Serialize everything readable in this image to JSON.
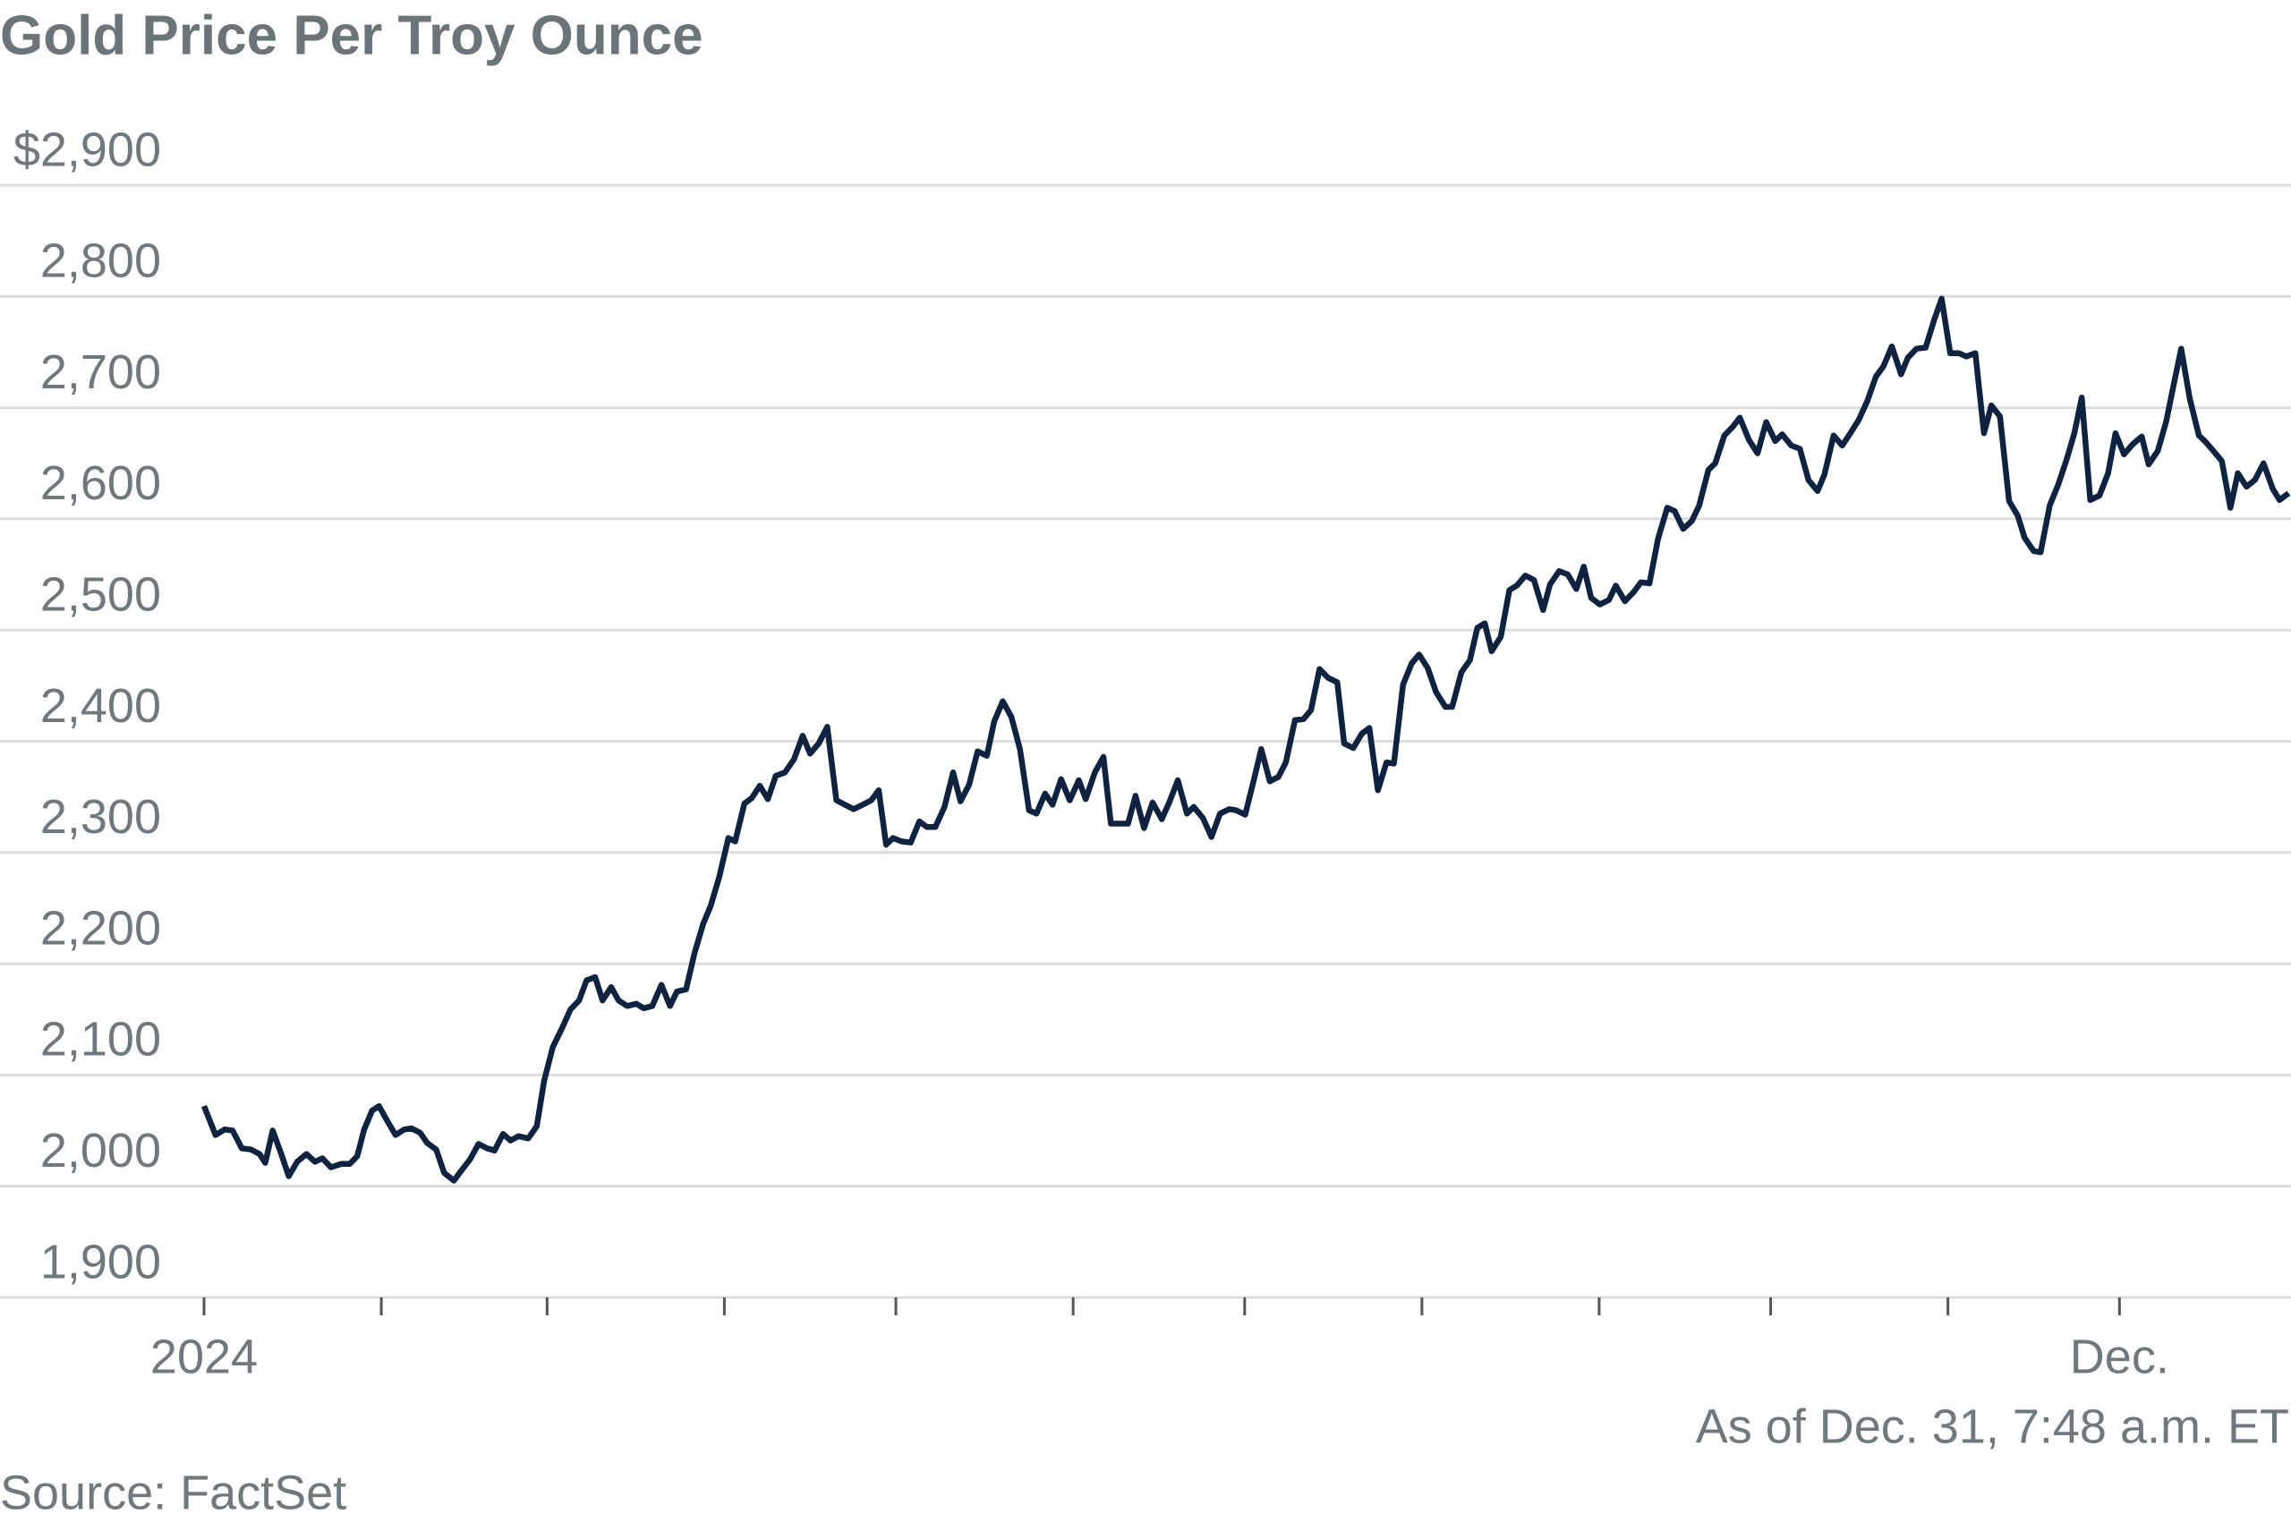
{
  "chart_data": {
    "type": "line",
    "title": "Gold Price Per Troy Ounce",
    "annotation": "As of Dec. 31, 7:48 a.m. ET",
    "source": "Source: FactSet",
    "color": "#0f2340",
    "grid": true,
    "xlim": [
      0,
      365
    ],
    "ylim": [
      1900,
      2900
    ],
    "yticks": [
      {
        "value": 1900,
        "label": "1,900"
      },
      {
        "value": 2000,
        "label": "2,000"
      },
      {
        "value": 2100,
        "label": "2,100"
      },
      {
        "value": 2200,
        "label": "2,200"
      },
      {
        "value": 2300,
        "label": "2,300"
      },
      {
        "value": 2400,
        "label": "2,400"
      },
      {
        "value": 2500,
        "label": "2,500"
      },
      {
        "value": 2600,
        "label": "2,600"
      },
      {
        "value": 2700,
        "label": "2,700"
      },
      {
        "value": 2800,
        "label": "2,800"
      },
      {
        "value": 2900,
        "label": "$2,900"
      }
    ],
    "xticks": [
      {
        "value": 0,
        "label": "2024"
      },
      {
        "value": 31,
        "label": null
      },
      {
        "value": 60,
        "label": null
      },
      {
        "value": 91,
        "label": null
      },
      {
        "value": 121,
        "label": null
      },
      {
        "value": 152,
        "label": null
      },
      {
        "value": 182,
        "label": null
      },
      {
        "value": 213,
        "label": null
      },
      {
        "value": 244,
        "label": null
      },
      {
        "value": 274,
        "label": null
      },
      {
        "value": 305,
        "label": null
      },
      {
        "value": 335,
        "label": "Dec."
      }
    ],
    "x": [
      0,
      2,
      3.6,
      5,
      6.6,
      8.2,
      9.7,
      10.7,
      12,
      13.5,
      14.8,
      16.3,
      17.9,
      19.4,
      20.7,
      22.2,
      24,
      25.5,
      26.8,
      28,
      29.4,
      30.6,
      31.9,
      33.5,
      35,
      36.3,
      37.8,
      39,
      40.6,
      42,
      43.7,
      45,
      46.5,
      48,
      49.5,
      50.8,
      52.3,
      53.6,
      55,
      56.7,
      58.2,
      59.5,
      61,
      62.6,
      64.1,
      65.6,
      66.9,
      68.4,
      69.7,
      71.2,
      72.5,
      74,
      75.6,
      76.9,
      78.4,
      80,
      81.5,
      82.7,
      84.3,
      85.8,
      87.3,
      88.6,
      90.1,
      91.7,
      92.9,
      94.5,
      95.8,
      97.2,
      98.6,
      100,
      101.6,
      103.2,
      104.7,
      106,
      107.5,
      109,
      110.6,
      112.1,
      113.6,
      115.2,
      116.7,
      118,
      119.3,
      120.5,
      122,
      123.6,
      125.1,
      126.4,
      127.9,
      129.5,
      131,
      132.3,
      133.8,
      135.3,
      136.9,
      138.2,
      139.7,
      141.2,
      142.7,
      144.3,
      145.6,
      147.1,
      148.4,
      149.9,
      151.4,
      153,
      154.2,
      155.8,
      157.3,
      158.6,
      160.1,
      161.6,
      162.9,
      164.4,
      165.9,
      167.5,
      168.8,
      170.3,
      171.9,
      173.1,
      174.7,
      176.2,
      177.7,
      179.3,
      180.5,
      182.1,
      183.6,
      184.9,
      186.4,
      187.9,
      189.2,
      190.8,
      192.3,
      193.6,
      195.1,
      196.6,
      198.2,
      199.4,
      201,
      202.5,
      203.8,
      205.3,
      206.8,
      208.1,
      209.7,
      211.2,
      212.5,
      214,
      215.5,
      217.1,
      218.3,
      219.9,
      221.4,
      222.7,
      224,
      225.2,
      226.8,
      228.3,
      229.6,
      231.1,
      232.6,
      234.2,
      235.4,
      237,
      238.5,
      240,
      241.3,
      242.6,
      244.1,
      245.7,
      246.9,
      248.5,
      250,
      251.3,
      252.8,
      254.3,
      255.9,
      257.2,
      258.7,
      260.2,
      261.5,
      263.1,
      264.3,
      265.9,
      267.4,
      268.6,
      270.2,
      271.7,
      273.2,
      274.8,
      276,
      277.6,
      279.1,
      280.6,
      282.2,
      283.4,
      285,
      286.5,
      287.8,
      289.4,
      290.9,
      292.4,
      293.7,
      295.2,
      296.8,
      298,
      299.5,
      301.1,
      302.6,
      303.9,
      305.4,
      306.9,
      308.2,
      309.8,
      311.3,
      312.6,
      314.1,
      315.7,
      317.2,
      318.4,
      320,
      321.2,
      322.8,
      324.3,
      325.8,
      327.1,
      328.4,
      329.9,
      331.5,
      333,
      334.3,
      335.8,
      337.3,
      338.9,
      340.1,
      341.7,
      343.2,
      344.5,
      345.8,
      347.3,
      348.9,
      350.1,
      351.6,
      352.9,
      354.4,
      355.7,
      357.2,
      358.7,
      360.2,
      361.8,
      363,
      364.6
    ],
    "values": [
      2072,
      2046,
      2051,
      2050,
      2034,
      2033,
      2029,
      2021,
      2050,
      2029,
      2009,
      2022,
      2029,
      2022,
      2025,
      2017,
      2020,
      2020,
      2027,
      2051,
      2068,
      2072,
      2060,
      2046,
      2051,
      2052,
      2048,
      2039,
      2033,
      2012,
      2005,
      2014,
      2024,
      2038,
      2034,
      2032,
      2047,
      2041,
      2045,
      2043,
      2054,
      2095,
      2125,
      2142,
      2159,
      2167,
      2185,
      2188,
      2167,
      2179,
      2167,
      2162,
      2164,
      2160,
      2162,
      2181,
      2162,
      2175,
      2177,
      2210,
      2236,
      2252,
      2278,
      2313,
      2310,
      2344,
      2349,
      2360,
      2348,
      2369,
      2372,
      2384,
      2405,
      2389,
      2398,
      2413,
      2347,
      2343,
      2339,
      2343,
      2347,
      2356,
      2307,
      2313,
      2310,
      2309,
      2328,
      2323,
      2323,
      2341,
      2372,
      2346,
      2361,
      2391,
      2387,
      2418,
      2436,
      2422,
      2393,
      2338,
      2335,
      2353,
      2343,
      2366,
      2347,
      2365,
      2348,
      2372,
      2386,
      2326,
      2326,
      2326,
      2351,
      2322,
      2345,
      2330,
      2345,
      2365,
      2335,
      2341,
      2331,
      2314,
      2335,
      2339,
      2338,
      2334,
      2365,
      2393,
      2364,
      2368,
      2381,
      2419,
      2420,
      2428,
      2465,
      2457,
      2453,
      2398,
      2394,
      2407,
      2412,
      2356,
      2381,
      2380,
      2451,
      2470,
      2478,
      2466,
      2444,
      2431,
      2431,
      2462,
      2473,
      2502,
      2506,
      2481,
      2494,
      2536,
      2540,
      2549,
      2545,
      2518,
      2541,
      2553,
      2550,
      2537,
      2557,
      2529,
      2523,
      2527,
      2540,
      2526,
      2534,
      2543,
      2542,
      2582,
      2610,
      2607,
      2591,
      2598,
      2612,
      2644,
      2650,
      2675,
      2683,
      2691,
      2671,
      2659,
      2687,
      2670,
      2676,
      2666,
      2663,
      2635,
      2625,
      2640,
      2675,
      2666,
      2676,
      2689,
      2706,
      2728,
      2737,
      2755,
      2730,
      2745,
      2753,
      2754,
      2779,
      2798,
      2749,
      2749,
      2746,
      2749,
      2677,
      2702,
      2692,
      2616,
      2603,
      2583,
      2571,
      2570,
      2612,
      2631,
      2654,
      2677,
      2709,
      2617,
      2621,
      2641,
      2677,
      2658,
      2667,
      2674,
      2649,
      2661,
      2688,
      2721,
      2753,
      2708,
      2675,
      2669,
      2660,
      2652,
      2610,
      2641,
      2629,
      2635,
      2650,
      2627,
      2617,
      2623
    ]
  }
}
